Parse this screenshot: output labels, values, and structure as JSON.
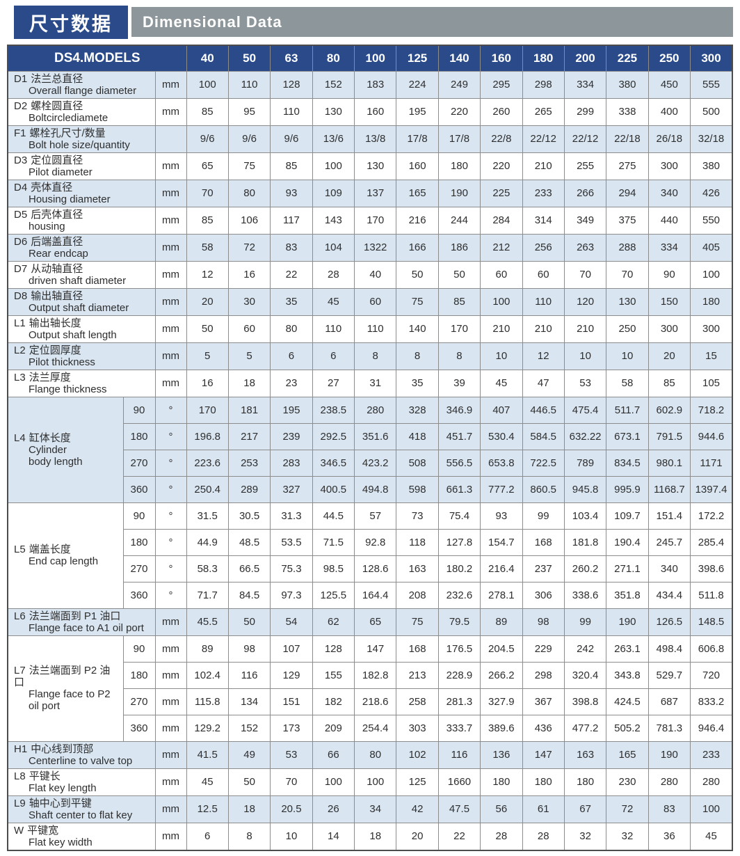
{
  "header": {
    "title_zh": "尺寸数据",
    "title_en": "Dimensional Data"
  },
  "colors": {
    "header_blue": "#2a4a8a",
    "bar_gray": "#8d979b",
    "row_light_blue": "#d9e6f2",
    "grid_border": "#8c8c8c",
    "outer_border": "#4c4c4c",
    "text": "#2e2e2e"
  },
  "table": {
    "header_label": "DS4.MODELS",
    "models": [
      "40",
      "50",
      "63",
      "80",
      "100",
      "125",
      "140",
      "160",
      "180",
      "200",
      "225",
      "250",
      "300"
    ],
    "rows": [
      {
        "type": "simple",
        "shaded": true,
        "code": "D1",
        "zh": "法兰总直径",
        "en": [
          "Overall flange diameter"
        ],
        "unit": "mm",
        "values": [
          "100",
          "110",
          "128",
          "152",
          "183",
          "224",
          "249",
          "295",
          "298",
          "334",
          "380",
          "450",
          "555"
        ]
      },
      {
        "type": "simple",
        "shaded": false,
        "code": "D2",
        "zh": "螺栓圆直径",
        "en": [
          "Boltcirclediamete"
        ],
        "unit": "mm",
        "values": [
          "85",
          "95",
          "110",
          "130",
          "160",
          "195",
          "220",
          "260",
          "265",
          "299",
          "338",
          "400",
          "500"
        ]
      },
      {
        "type": "simple",
        "shaded": true,
        "code": "F1",
        "zh": "螺栓孔尺寸/数量",
        "en": [
          "Bolt hole size/quantity"
        ],
        "unit": "",
        "values": [
          "9/6",
          "9/6",
          "9/6",
          "13/6",
          "13/8",
          "17/8",
          "17/8",
          "22/8",
          "22/12",
          "22/12",
          "22/18",
          "26/18",
          "32/18"
        ]
      },
      {
        "type": "simple",
        "shaded": false,
        "code": "D3",
        "zh": "定位圆直径",
        "en": [
          "Pilot diameter"
        ],
        "unit": "mm",
        "values": [
          "65",
          "75",
          "85",
          "100",
          "130",
          "160",
          "180",
          "220",
          "210",
          "255",
          "275",
          "300",
          "380"
        ]
      },
      {
        "type": "simple",
        "shaded": true,
        "code": "D4",
        "zh": "壳体直径",
        "en": [
          "Housing diameter"
        ],
        "unit": "mm",
        "values": [
          "70",
          "80",
          "93",
          "109",
          "137",
          "165",
          "190",
          "225",
          "233",
          "266",
          "294",
          "340",
          "426"
        ]
      },
      {
        "type": "simple",
        "shaded": false,
        "code": "D5",
        "zh": "后壳体直径",
        "en": [
          "housing"
        ],
        "unit": "mm",
        "values": [
          "85",
          "106",
          "117",
          "143",
          "170",
          "216",
          "244",
          "284",
          "314",
          "349",
          "375",
          "440",
          "550"
        ]
      },
      {
        "type": "simple",
        "shaded": true,
        "code": "D6",
        "zh": "后端盖直径",
        "en": [
          "Rear endcap"
        ],
        "unit": "mm",
        "values": [
          "58",
          "72",
          "83",
          "104",
          "1322",
          "166",
          "186",
          "212",
          "256",
          "263",
          "288",
          "334",
          "405"
        ]
      },
      {
        "type": "simple",
        "shaded": false,
        "code": "D7",
        "zh": "从动轴直径",
        "en": [
          "driven shaft diameter"
        ],
        "unit": "mm",
        "values": [
          "12",
          "16",
          "22",
          "28",
          "40",
          "50",
          "50",
          "60",
          "60",
          "70",
          "70",
          "90",
          "100"
        ]
      },
      {
        "type": "simple",
        "shaded": true,
        "code": "D8",
        "zh": "输出轴直径",
        "en": [
          "Output shaft diameter"
        ],
        "unit": "mm",
        "values": [
          "20",
          "30",
          "35",
          "45",
          "60",
          "75",
          "85",
          "100",
          "110",
          "120",
          "130",
          "150",
          "180"
        ]
      },
      {
        "type": "simple",
        "shaded": false,
        "code": "L1",
        "zh": "输出轴长度",
        "en": [
          "Output shaft length"
        ],
        "unit": "mm",
        "values": [
          "50",
          "60",
          "80",
          "110",
          "110",
          "140",
          "170",
          "210",
          "210",
          "210",
          "250",
          "300",
          "300"
        ]
      },
      {
        "type": "simple",
        "shaded": true,
        "code": "L2",
        "zh": "定位圆厚度",
        "en": [
          "Pilot thickness"
        ],
        "unit": "mm",
        "values": [
          "5",
          "5",
          "6",
          "6",
          "8",
          "8",
          "8",
          "10",
          "12",
          "10",
          "10",
          "20",
          "15"
        ]
      },
      {
        "type": "simple",
        "shaded": false,
        "code": "L3",
        "zh": "法兰厚度",
        "en": [
          "Flange thickness"
        ],
        "unit": "mm",
        "values": [
          "16",
          "18",
          "23",
          "27",
          "31",
          "35",
          "39",
          "45",
          "47",
          "53",
          "58",
          "85",
          "105"
        ]
      },
      {
        "type": "group",
        "shaded": true,
        "code": "L4",
        "zh": "缸体长度",
        "en": [
          "Cylinder",
          "body length"
        ],
        "subs": [
          {
            "angle": "90",
            "unit": "°",
            "values": [
              "170",
              "181",
              "195",
              "238.5",
              "280",
              "328",
              "346.9",
              "407",
              "446.5",
              "475.4",
              "511.7",
              "602.9",
              "718.2"
            ]
          },
          {
            "angle": "180",
            "unit": "°",
            "values": [
              "196.8",
              "217",
              "239",
              "292.5",
              "351.6",
              "418",
              "451.7",
              "530.4",
              "584.5",
              "632.22",
              "673.1",
              "791.5",
              "944.6"
            ]
          },
          {
            "angle": "270",
            "unit": "°",
            "values": [
              "223.6",
              "253",
              "283",
              "346.5",
              "423.2",
              "508",
              "556.5",
              "653.8",
              "722.5",
              "789",
              "834.5",
              "980.1",
              "1171"
            ]
          },
          {
            "angle": "360",
            "unit": "°",
            "values": [
              "250.4",
              "289",
              "327",
              "400.5",
              "494.8",
              "598",
              "661.3",
              "777.2",
              "860.5",
              "945.8",
              "995.9",
              "1168.7",
              "1397.4"
            ]
          }
        ]
      },
      {
        "type": "group",
        "shaded": false,
        "code": "L5",
        "zh": "端盖长度",
        "en": [
          "End cap length"
        ],
        "subs": [
          {
            "angle": "90",
            "unit": "°",
            "values": [
              "31.5",
              "30.5",
              "31.3",
              "44.5",
              "57",
              "73",
              "75.4",
              "93",
              "99",
              "103.4",
              "109.7",
              "151.4",
              "172.2"
            ]
          },
          {
            "angle": "180",
            "unit": "°",
            "values": [
              "44.9",
              "48.5",
              "53.5",
              "71.5",
              "92.8",
              "118",
              "127.8",
              "154.7",
              "168",
              "181.8",
              "190.4",
              "245.7",
              "285.4"
            ]
          },
          {
            "angle": "270",
            "unit": "°",
            "values": [
              "58.3",
              "66.5",
              "75.3",
              "98.5",
              "128.6",
              "163",
              "180.2",
              "216.4",
              "237",
              "260.2",
              "271.1",
              "340",
              "398.6"
            ]
          },
          {
            "angle": "360",
            "unit": "°",
            "values": [
              "71.7",
              "84.5",
              "97.3",
              "125.5",
              "164.4",
              "208",
              "232.6",
              "278.1",
              "306",
              "338.6",
              "351.8",
              "434.4",
              "511.8"
            ]
          }
        ]
      },
      {
        "type": "simple",
        "shaded": true,
        "code": "L6",
        "zh": "法兰端面到 P1 油口",
        "en": [
          "Flange face to A1 oil port"
        ],
        "unit": "mm",
        "values": [
          "45.5",
          "50",
          "54",
          "62",
          "65",
          "75",
          "79.5",
          "89",
          "98",
          "99",
          "190",
          "126.5",
          "148.5"
        ]
      },
      {
        "type": "group",
        "shaded": false,
        "code": "L7",
        "zh": "法兰端面到 P2 油口",
        "en": [
          "Flange face to P2",
          "oil port"
        ],
        "subs": [
          {
            "angle": "90",
            "unit": "mm",
            "values": [
              "89",
              "98",
              "107",
              "128",
              "147",
              "168",
              "176.5",
              "204.5",
              "229",
              "242",
              "263.1",
              "498.4",
              "606.8"
            ]
          },
          {
            "angle": "180",
            "unit": "mm",
            "values": [
              "102.4",
              "116",
              "129",
              "155",
              "182.8",
              "213",
              "228.9",
              "266.2",
              "298",
              "320.4",
              "343.8",
              "529.7",
              "720"
            ]
          },
          {
            "angle": "270",
            "unit": "mm",
            "values": [
              "115.8",
              "134",
              "151",
              "182",
              "218.6",
              "258",
              "281.3",
              "327.9",
              "367",
              "398.8",
              "424.5",
              "687",
              "833.2"
            ]
          },
          {
            "angle": "360",
            "unit": "mm",
            "values": [
              "129.2",
              "152",
              "173",
              "209",
              "254.4",
              "303",
              "333.7",
              "389.6",
              "436",
              "477.2",
              "505.2",
              "781.3",
              "946.4"
            ]
          }
        ]
      },
      {
        "type": "simple",
        "shaded": true,
        "code": "H1",
        "zh": "中心线到顶部",
        "en": [
          "Centerline to valve top"
        ],
        "unit": "mm",
        "values": [
          "41.5",
          "49",
          "53",
          "66",
          "80",
          "102",
          "116",
          "136",
          "147",
          "163",
          "165",
          "190",
          "233"
        ]
      },
      {
        "type": "simple",
        "shaded": false,
        "code": "L8",
        "zh": "平键长",
        "en": [
          "Flat key length"
        ],
        "unit": "mm",
        "values": [
          "45",
          "50",
          "70",
          "100",
          "100",
          "125",
          "1660",
          "180",
          "180",
          "180",
          "230",
          "280",
          "280"
        ]
      },
      {
        "type": "simple",
        "shaded": true,
        "code": "L9",
        "zh": "轴中心到平键",
        "en": [
          "Shaft center to flat key"
        ],
        "unit": "mm",
        "values": [
          "12.5",
          "18",
          "20.5",
          "26",
          "34",
          "42",
          "47.5",
          "56",
          "61",
          "67",
          "72",
          "83",
          "100"
        ]
      },
      {
        "type": "simple",
        "shaded": false,
        "code": "W",
        "zh": "平键宽",
        "en": [
          "Flat key width"
        ],
        "unit": "mm",
        "values": [
          "6",
          "8",
          "10",
          "14",
          "18",
          "20",
          "22",
          "28",
          "28",
          "32",
          "32",
          "36",
          "45"
        ]
      }
    ]
  }
}
